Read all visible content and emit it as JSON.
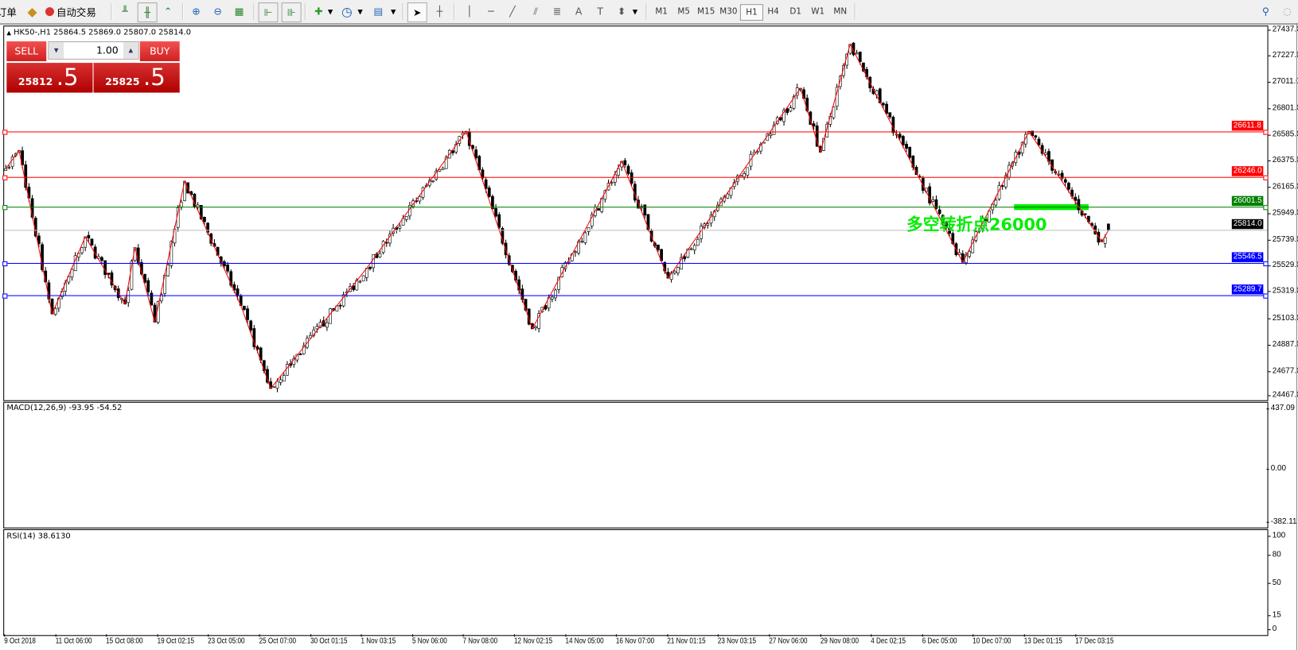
{
  "toolbar": {
    "order_label": "订单",
    "autotrade_label": "自动交易",
    "timeframes": [
      "M1",
      "M5",
      "M15",
      "M30",
      "H1",
      "H4",
      "D1",
      "W1",
      "MN"
    ],
    "active_timeframe": "H1",
    "icons": [
      "bar-chart",
      "candlestick-chart",
      "line-chart",
      "zoom-in",
      "zoom-out",
      "tile-windows",
      "autoscroll",
      "chart-shift",
      "indicators",
      "periods",
      "templates",
      "cursor",
      "crosshair",
      "vertical-line",
      "horizontal-line",
      "trendline",
      "equidistant-channel",
      "fibonacci",
      "text",
      "text-label",
      "arrows",
      "search",
      "chat"
    ]
  },
  "chart": {
    "header": "HK50-,H1  25864.5 25869.0 25807.0 25814.0",
    "annotation": "多空转折点26000",
    "annotation_color": "#00ee00",
    "price_ticks": [
      "27437.0",
      "27227.0",
      "27011.0",
      "26801.0",
      "26585.0",
      "26375.0",
      "26165.0",
      "25949.0",
      "25739.0",
      "25529.0",
      "25319.0",
      "25103.0",
      "24887.0",
      "24677.0",
      "24467.0"
    ],
    "levels": [
      {
        "label": "26611.8",
        "value": 26611.8,
        "color": "#ff0000"
      },
      {
        "label": "26246.0",
        "value": 26246.0,
        "color": "#ff0000"
      },
      {
        "label": "26001.5",
        "value": 26001.5,
        "color": "#008000"
      },
      {
        "label": "25546.5",
        "value": 25546.5,
        "color": "#0000ff"
      },
      {
        "label": "25289.7",
        "value": 25289.7,
        "color": "#0000ff"
      }
    ],
    "current_price": {
      "label": "25814.0",
      "value": 25814.0
    },
    "time_ticks": [
      "9 Oct 2018",
      "11 Oct 06:00",
      "15 Oct 08:00",
      "19 Oct 02:15",
      "23 Oct 05:00",
      "25 Oct 07:00",
      "30 Oct 01:15",
      "1 Nov 03:15",
      "5 Nov 06:00",
      "7 Nov 08:00",
      "12 Nov 02:15",
      "14 Nov 05:00",
      "16 Nov 07:00",
      "21 Nov 01:15",
      "23 Nov 03:15",
      "27 Nov 06:00",
      "29 Nov 08:00",
      "4 Dec 02:15",
      "6 Dec 05:00",
      "10 Dec 07:00",
      "13 Dec 01:15",
      "17 Dec 03:15"
    ]
  },
  "trade_panel": {
    "sell_label": "SELL",
    "buy_label": "BUY",
    "volume": "1.00",
    "sell_price_main": "25812",
    "sell_price_frac": ".5",
    "buy_price_main": "25825",
    "buy_price_frac": ".5"
  },
  "macd": {
    "label": "MACD(12,26,9) -93.95 -54.52",
    "ticks": [
      "437.09",
      "0.00",
      "-382.11"
    ]
  },
  "rsi": {
    "label": "RSI(14) 38.6130",
    "ticks": [
      "100",
      "80",
      "50",
      "15",
      "0"
    ]
  },
  "chart_data": {
    "type": "candlestick",
    "symbol": "HK50-",
    "timeframe": "H1",
    "ylim": [
      24467.0,
      27437.0
    ],
    "zigzag_pivots": [
      {
        "bar": 0,
        "price": 26311
      },
      {
        "bar": 4,
        "price": 26458
      },
      {
        "bar": 14,
        "price": 25138
      },
      {
        "bar": 24,
        "price": 25761
      },
      {
        "bar": 36,
        "price": 25218
      },
      {
        "bar": 39,
        "price": 25674
      },
      {
        "bar": 45,
        "price": 25071
      },
      {
        "bar": 54,
        "price": 26210
      },
      {
        "bar": 71,
        "price": 25205
      },
      {
        "bar": 80,
        "price": 24535
      },
      {
        "bar": 109,
        "price": 25507
      },
      {
        "bar": 139,
        "price": 26613
      },
      {
        "bar": 159,
        "price": 25017
      },
      {
        "bar": 186,
        "price": 26371
      },
      {
        "bar": 200,
        "price": 25426
      },
      {
        "bar": 240,
        "price": 26961
      },
      {
        "bar": 246,
        "price": 26445
      },
      {
        "bar": 255,
        "price": 27316
      },
      {
        "bar": 289,
        "price": 25554
      },
      {
        "bar": 309,
        "price": 26613
      },
      {
        "bar": 331,
        "price": 25721
      },
      {
        "bar": 333,
        "price": 25814
      }
    ],
    "last_bar": {
      "open": 25864.5,
      "high": 25869.0,
      "low": 25807.0,
      "close": 25814.0
    },
    "macd_range": [
      -382.11,
      437.09
    ],
    "rsi_range": [
      0,
      100
    ],
    "rsi_levels": [
      80,
      50,
      15
    ]
  }
}
